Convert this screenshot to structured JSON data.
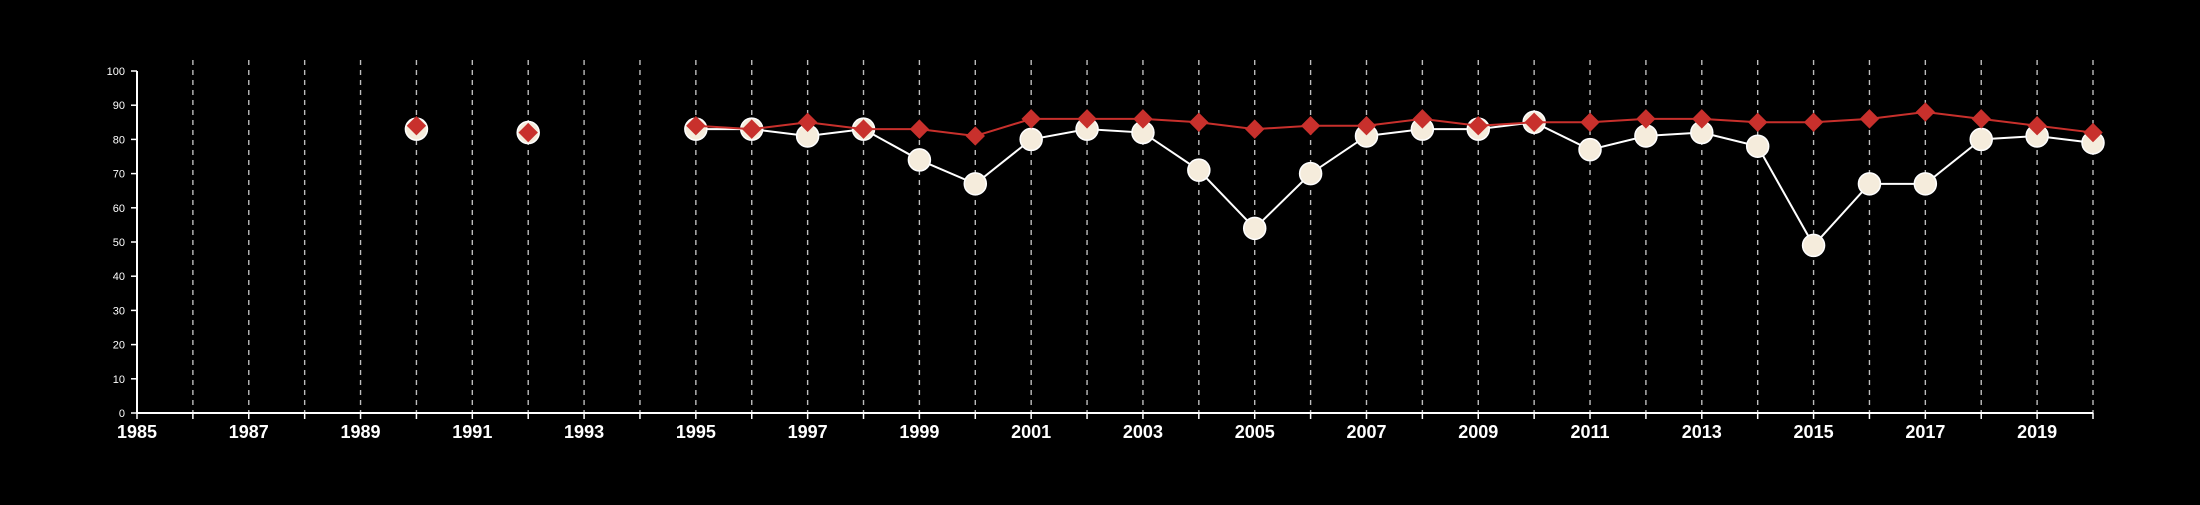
{
  "chart_data": {
    "type": "line",
    "background": "#000000",
    "axis_color": "#ffffff",
    "grid_color": "#bdbdbd",
    "grid": "vertical-dashed",
    "xlim": [
      1985,
      2020
    ],
    "ylim": [
      0,
      100
    ],
    "x_tick_labels": [
      "1985",
      "1987",
      "1989",
      "1991",
      "1993",
      "1995",
      "1997",
      "1999",
      "2001",
      "2003",
      "2005",
      "2007",
      "2009",
      "2011",
      "2013",
      "2015",
      "2017",
      "2019"
    ],
    "y_tick_labels": [
      "0",
      "10",
      "20",
      "30",
      "40",
      "50",
      "60",
      "70",
      "80",
      "90",
      "100"
    ],
    "series": [
      {
        "marker": "diamond",
        "color": "#c8302c",
        "x": [
          1990,
          1992,
          1995,
          1996,
          1997,
          1998,
          1999,
          2000,
          2001,
          2002,
          2003,
          2004,
          2005,
          2006,
          2007,
          2008,
          2009,
          2010,
          2011,
          2012,
          2013,
          2014,
          2015,
          2016,
          2017,
          2018,
          2019,
          2020
        ],
        "values": [
          84,
          82,
          84,
          83,
          85,
          83,
          83,
          81,
          86,
          86,
          86,
          85,
          83,
          84,
          84,
          86,
          84,
          85,
          85,
          86,
          86,
          85,
          85,
          86,
          88,
          86,
          84,
          82
        ]
      },
      {
        "marker": "circle",
        "color": "#f5ecdc",
        "line_color": "#ffffff",
        "x": [
          1990,
          1992,
          1995,
          1996,
          1997,
          1998,
          1999,
          2000,
          2001,
          2002,
          2003,
          2004,
          2005,
          2006,
          2007,
          2008,
          2009,
          2010,
          2011,
          2012,
          2013,
          2014,
          2015,
          2016,
          2017,
          2018,
          2019,
          2020
        ],
        "values": [
          83,
          82,
          83,
          83,
          81,
          83,
          74,
          67,
          80,
          83,
          82,
          71,
          54,
          70,
          81,
          83,
          83,
          85,
          77,
          81,
          82,
          78,
          49,
          67,
          67,
          80,
          81,
          79
        ]
      }
    ]
  }
}
